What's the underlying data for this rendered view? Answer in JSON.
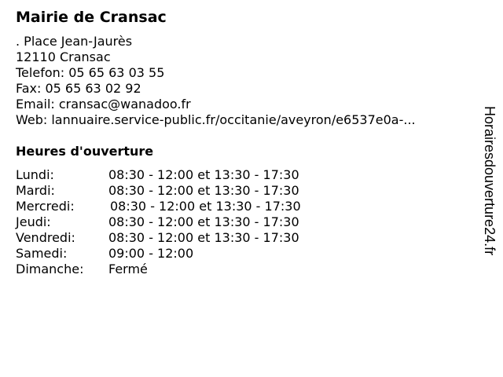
{
  "title": "Mairie de Cransac",
  "address": {
    "street": ". Place Jean-Jaurès",
    "city": "12110 Cransac",
    "phone": "Telefon: 05 65 63 03 55",
    "fax": "Fax: 05 65 63 02 92",
    "email": "Email: cransac@wanadoo.fr",
    "web": "Web: lannuaire.service-public.fr/occitanie/aveyron/e6537e0a-..."
  },
  "hours": {
    "heading": "Heures d'ouverture",
    "days": [
      {
        "day": "Lundi:",
        "time": "08:30 - 12:00 et 13:30 - 17:30"
      },
      {
        "day": "Mardi:",
        "time": "08:30 - 12:00 et 13:30 - 17:30"
      },
      {
        "day": "Mercredi:",
        "time": "08:30 - 12:00 et 13:30 - 17:30"
      },
      {
        "day": "Jeudi:",
        "time": "08:30 - 12:00 et 13:30 - 17:30"
      },
      {
        "day": "Vendredi:",
        "time": "08:30 - 12:00 et 13:30 - 17:30"
      },
      {
        "day": "Samedi:",
        "time": "09:00 - 12:00"
      },
      {
        "day": "Dimanche:",
        "time": "Fermé"
      }
    ]
  },
  "watermark": "Horairesdouverture24.fr"
}
